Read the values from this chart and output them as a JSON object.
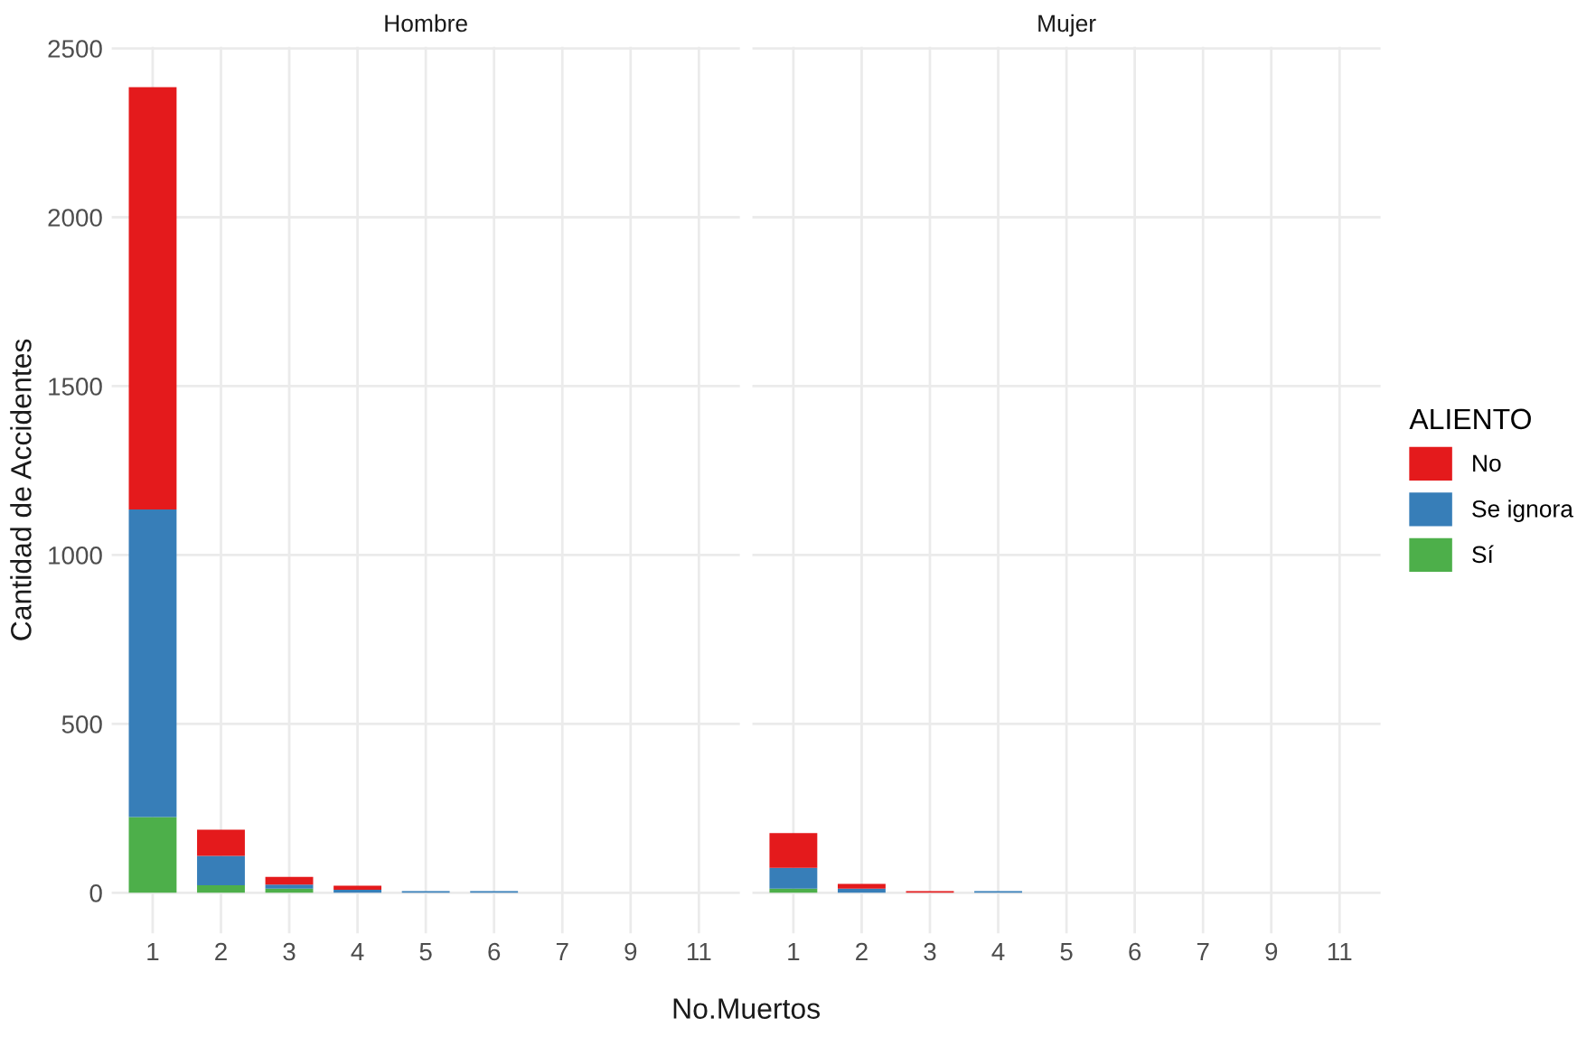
{
  "chart_data": [
    {
      "type": "bar",
      "title": "Hombre",
      "xlabel": "No.Muertos",
      "ylabel": "Cantidad de Accidentes",
      "stacked": true,
      "categories": [
        "1",
        "2",
        "3",
        "4",
        "5",
        "6",
        "7",
        "9",
        "11"
      ],
      "series": [
        {
          "name": "Sí",
          "color": "#4daf4a",
          "values": [
            224,
            22,
            12,
            0,
            0,
            0,
            0,
            0,
            0
          ]
        },
        {
          "name": "Se ignora",
          "color": "#377eb8",
          "values": [
            911,
            87,
            12,
            9,
            5,
            5,
            null,
            null,
            null
          ]
        },
        {
          "name": "No",
          "color": "#e41a1c",
          "values": [
            1250,
            78,
            23,
            12,
            0,
            0,
            0,
            0,
            0
          ]
        }
      ],
      "ylim": [
        -120,
        2505
      ],
      "yticks": [
        0,
        500,
        1000,
        1500,
        2000,
        2500
      ],
      "grid": true,
      "legend": "right",
      "legend_title": "ALIENTO"
    },
    {
      "type": "bar",
      "title": "Mujer",
      "stacked": true,
      "categories": [
        "1",
        "2",
        "3",
        "4",
        "5",
        "6",
        "7",
        "9",
        "11"
      ],
      "series": [
        {
          "color": "#4daf4a",
          "values": [
            12,
            0,
            0,
            0,
            0,
            0,
            0,
            0,
            0
          ]
        },
        {
          "color": "#377eb8",
          "values": [
            62,
            12,
            0,
            5,
            0,
            0,
            0,
            0,
            0
          ]
        },
        {
          "color": "#e41a1c",
          "values": [
            103,
            14,
            5,
            0,
            0,
            0,
            0,
            0,
            0
          ]
        }
      ],
      "ylim": [
        -120,
        2505
      ],
      "yticks": [
        0,
        500,
        1000,
        1500,
        2000,
        2500
      ],
      "tick_labels": "x",
      "grid": true
    }
  ]
}
